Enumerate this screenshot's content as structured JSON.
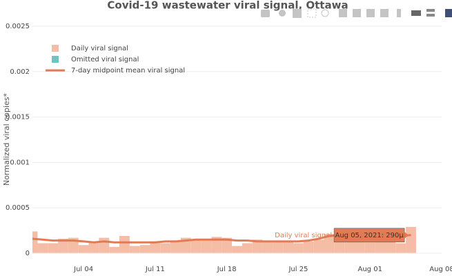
{
  "chart_data": {
    "type": "bar_line",
    "title": "Covid-19 wastewater viral signal, Ottawa",
    "y_label": "Normalized viral copies*",
    "x": [
      "2021-06-29",
      "2021-06-30",
      "2021-07-01",
      "2021-07-02",
      "2021-07-03",
      "2021-07-04",
      "2021-07-05",
      "2021-07-06",
      "2021-07-07",
      "2021-07-08",
      "2021-07-09",
      "2021-07-10",
      "2021-07-11",
      "2021-07-12",
      "2021-07-13",
      "2021-07-14",
      "2021-07-15",
      "2021-07-16",
      "2021-07-17",
      "2021-07-18",
      "2021-07-19",
      "2021-07-20",
      "2021-07-21",
      "2021-07-22",
      "2021-07-23",
      "2021-07-24",
      "2021-07-25",
      "2021-07-26",
      "2021-07-27",
      "2021-07-28",
      "2021-07-29",
      "2021-07-30",
      "2021-07-31",
      "2021-08-01",
      "2021-08-02",
      "2021-08-03",
      "2021-08-04",
      "2021-08-05"
    ],
    "series": [
      {
        "name": "Daily viral signal",
        "kind": "bar",
        "color": "#f5bca6",
        "values": [
          0.00024,
          0.00011,
          0.00011,
          0.00016,
          0.00017,
          9e-05,
          0.00013,
          0.00017,
          7e-05,
          0.00019,
          8e-05,
          9e-05,
          0.00013,
          0.00011,
          0.00013,
          0.00017,
          0.00015,
          0.00014,
          0.00018,
          0.00017,
          8e-05,
          0.00011,
          0.00015,
          0.00014,
          0.00014,
          0.00013,
          0.00011,
          0.00013,
          0.00015,
          0.00021,
          0.00022,
          0.00023,
          0.00024,
          0.00014,
          0.00015,
          0.00024,
          0.00011,
          0.00029
        ]
      },
      {
        "name": "Omitted viral signal",
        "kind": "bar",
        "color": "#6fc3c3",
        "values": [
          null,
          null,
          null,
          null,
          null,
          null,
          null,
          null,
          null,
          null,
          null,
          null,
          null,
          null,
          null,
          null,
          null,
          null,
          null,
          null,
          null,
          null,
          null,
          null,
          null,
          null,
          null,
          null,
          null,
          null,
          null,
          null,
          null,
          null,
          null,
          null,
          null,
          null
        ]
      },
      {
        "name": "7-day midpoint mean viral signal",
        "kind": "line",
        "color": "#e27b55",
        "values": [
          0.00016,
          0.00015,
          0.00014,
          0.00014,
          0.00014,
          0.00013,
          0.00012,
          0.00013,
          0.00012,
          0.00012,
          0.00012,
          0.00012,
          0.00012,
          0.00013,
          0.00013,
          0.00014,
          0.00015,
          0.00015,
          0.00015,
          0.00015,
          0.00014,
          0.00014,
          0.00013,
          0.00013,
          0.00013,
          0.00013,
          0.00013,
          0.00014,
          0.00016,
          0.00019,
          0.0002,
          0.0002,
          0.0002,
          0.0002,
          0.00019,
          0.00019,
          0.00019,
          0.0002
        ]
      }
    ],
    "xlim": [
      "2021-06-29",
      "2021-08-08"
    ],
    "xticks": [
      {
        "value": "2021-07-04",
        "label": "Jul 04"
      },
      {
        "value": "2021-07-11",
        "label": "Jul 11"
      },
      {
        "value": "2021-07-18",
        "label": "Jul 18"
      },
      {
        "value": "2021-07-25",
        "label": "Jul 25"
      },
      {
        "value": "2021-08-01",
        "label": "Aug 01"
      },
      {
        "value": "2021-08-08",
        "label": "Aug 08"
      }
    ],
    "ylim": [
      0,
      0.0025
    ],
    "yticks": [
      0,
      0.0005,
      0.001,
      0.0015,
      0.002,
      0.0025
    ],
    "grid": true,
    "legend": "upper left",
    "hover": {
      "name": "Daily viral signal",
      "label": "Aug 05, 2021: 290µ"
    }
  }
}
